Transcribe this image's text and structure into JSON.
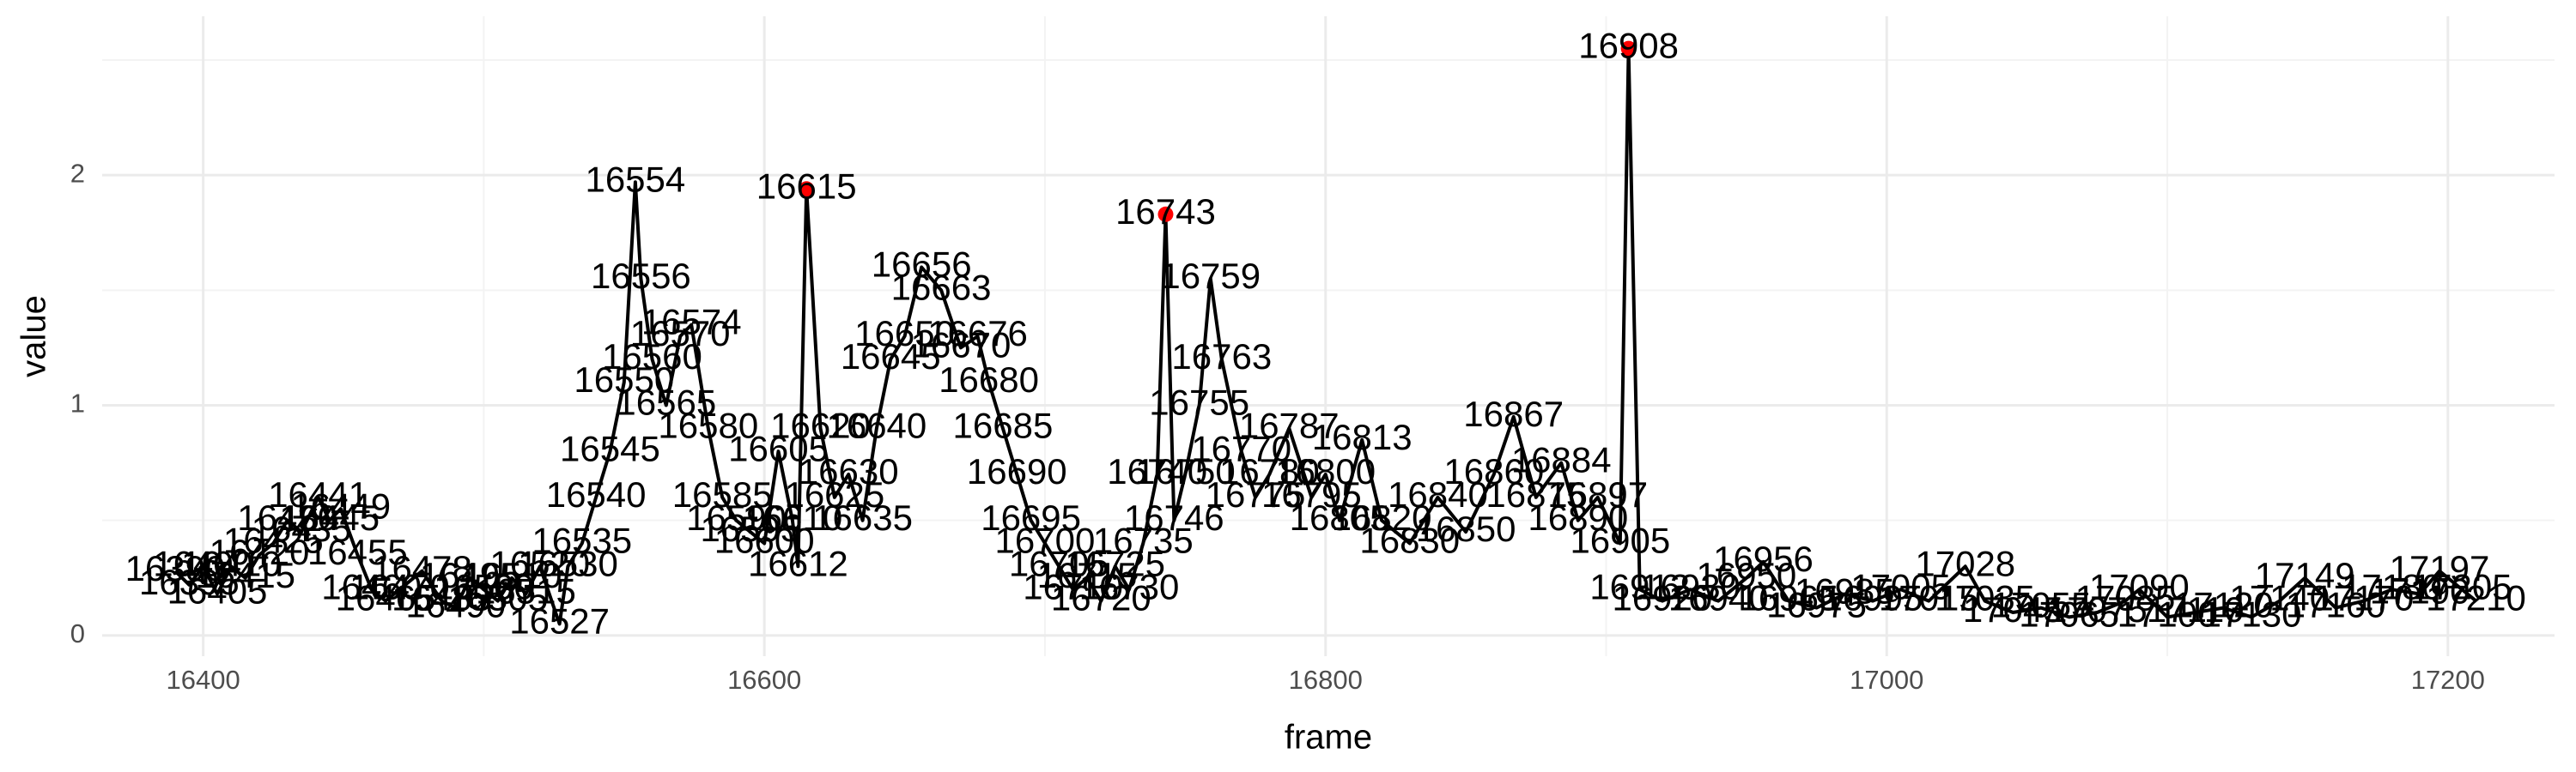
{
  "chart_data": {
    "type": "line",
    "x_label": "frame",
    "y_label": "value",
    "x": [
      16390,
      16395,
      16400,
      16405,
      16410,
      16415,
      16420,
      16425,
      16430,
      16435,
      16441,
      16445,
      16449,
      16455,
      16460,
      16465,
      16470,
      16478,
      16485,
      16490,
      16495,
      16500,
      16505,
      16510,
      16515,
      16520,
      16527,
      16530,
      16535,
      16540,
      16545,
      16550,
      16554,
      16556,
      16560,
      16565,
      16570,
      16574,
      16580,
      16585,
      16590,
      16595,
      16600,
      16605,
      16610,
      16612,
      16615,
      16620,
      16625,
      16630,
      16635,
      16640,
      16645,
      16650,
      16656,
      16663,
      16670,
      16676,
      16680,
      16685,
      16690,
      16695,
      16700,
      16705,
      16710,
      16715,
      16720,
      16725,
      16730,
      16735,
      16740,
      16743,
      16746,
      16750,
      16755,
      16759,
      16763,
      16770,
      16775,
      16780,
      16787,
      16795,
      16800,
      16805,
      16813,
      16820,
      16830,
      16840,
      16850,
      16860,
      16867,
      16875,
      16884,
      16890,
      16897,
      16905,
      16908,
      16912,
      16920,
      16930,
      16940,
      16950,
      16956,
      16965,
      16975,
      16985,
      16995,
      17005,
      17015,
      17028,
      17035,
      17045,
      17055,
      17065,
      17075,
      17085,
      17090,
      17100,
      17110,
      17120,
      17130,
      17140,
      17149,
      17160,
      17170,
      17180,
      17190,
      17197,
      17205,
      17210
    ],
    "series": [
      {
        "color": "#000000",
        "values": [
          0.28,
          0.22,
          0.3,
          0.18,
          0.3,
          0.25,
          0.35,
          0.4,
          0.5,
          0.45,
          0.6,
          0.5,
          0.55,
          0.35,
          0.2,
          0.15,
          0.2,
          0.28,
          0.15,
          0.12,
          0.25,
          0.2,
          0.15,
          0.25,
          0.18,
          0.3,
          0.05,
          0.3,
          0.4,
          0.6,
          0.8,
          1.1,
          1.97,
          1.55,
          1.2,
          1.0,
          1.3,
          1.35,
          0.9,
          0.6,
          0.5,
          0.45,
          0.4,
          0.8,
          0.5,
          0.3,
          1.94,
          0.9,
          0.6,
          0.7,
          0.5,
          0.9,
          1.2,
          1.3,
          1.6,
          1.5,
          1.25,
          1.3,
          1.1,
          0.9,
          0.7,
          0.5,
          0.4,
          0.3,
          0.2,
          0.25,
          0.15,
          0.3,
          0.2,
          0.4,
          0.7,
          1.83,
          0.5,
          0.7,
          1.0,
          1.55,
          1.2,
          0.8,
          0.6,
          0.7,
          0.9,
          0.6,
          0.7,
          0.5,
          0.85,
          0.5,
          0.4,
          0.6,
          0.45,
          0.7,
          0.95,
          0.6,
          0.75,
          0.5,
          0.6,
          0.4,
          2.55,
          0.2,
          0.15,
          0.2,
          0.15,
          0.25,
          0.32,
          0.15,
          0.12,
          0.18,
          0.15,
          0.2,
          0.15,
          0.3,
          0.15,
          0.1,
          0.12,
          0.08,
          0.1,
          0.15,
          0.2,
          0.08,
          0.1,
          0.12,
          0.08,
          0.15,
          0.25,
          0.12,
          0.15,
          0.2,
          0.18,
          0.28,
          0.2,
          0.15
        ]
      }
    ],
    "highlight": {
      "color": "#ff0000",
      "x": [
        16615,
        16743,
        16908
      ],
      "values": [
        1.94,
        1.83,
        2.55
      ]
    },
    "xlim": [
      16364,
      17238
    ],
    "ylim": [
      -0.09,
      2.69
    ],
    "xticks": [
      16400,
      16600,
      16800,
      17000,
      17200
    ],
    "minor_xticks": [
      16500,
      16700,
      16900,
      17100
    ],
    "yticks": [
      0,
      1,
      2
    ],
    "minor_yticks": [
      0.5,
      1.5,
      2.5
    ],
    "grid": true
  }
}
